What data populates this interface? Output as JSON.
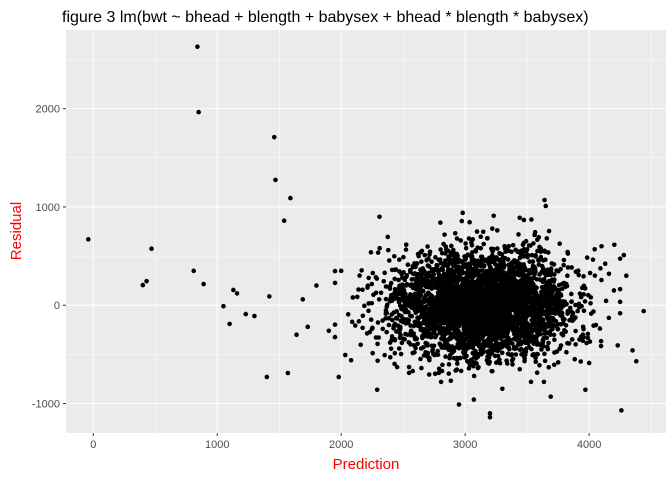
{
  "chart_data": {
    "type": "scatter",
    "title": "figure 3 lm(bwt ~ bhead + blength + babysex + bhead * blength * babysex)",
    "xlabel": "Prediction",
    "ylabel": "Residual",
    "xlim": [
      -220,
      4620
    ],
    "ylim": [
      -1300,
      2800
    ],
    "x_ticks": [
      0,
      1000,
      2000,
      3000,
      4000
    ],
    "y_ticks": [
      -1000,
      0,
      1000,
      2000
    ],
    "x_tick_labels": [
      "0",
      "1000",
      "2000",
      "3000",
      "4000"
    ],
    "y_tick_labels": [
      "-1000",
      "0",
      "1000",
      "2000"
    ],
    "grid": true,
    "panel_background": "#ebebeb",
    "grid_color": "#ffffff",
    "point_color": "#000000",
    "axis_label_color": "#ff0000",
    "outlier_points": [
      {
        "x": -40,
        "y": 670
      },
      {
        "x": 400,
        "y": 205
      },
      {
        "x": 430,
        "y": 245
      },
      {
        "x": 470,
        "y": 575
      },
      {
        "x": 810,
        "y": 350
      },
      {
        "x": 840,
        "y": 2630
      },
      {
        "x": 850,
        "y": 1965
      },
      {
        "x": 890,
        "y": 215
      },
      {
        "x": 1050,
        "y": -10
      },
      {
        "x": 1100,
        "y": -190
      },
      {
        "x": 1130,
        "y": 155
      },
      {
        "x": 1160,
        "y": 120
      },
      {
        "x": 1400,
        "y": -730
      },
      {
        "x": 1460,
        "y": 1710
      },
      {
        "x": 1470,
        "y": 1275
      },
      {
        "x": 1540,
        "y": 860
      },
      {
        "x": 1570,
        "y": -690
      },
      {
        "x": 1590,
        "y": 1090
      },
      {
        "x": 1980,
        "y": -730
      },
      {
        "x": 2290,
        "y": -860
      },
      {
        "x": 2950,
        "y": -1010
      },
      {
        "x": 3070,
        "y": -960
      },
      {
        "x": 3200,
        "y": -1100
      },
      {
        "x": 3200,
        "y": -1140
      },
      {
        "x": 3300,
        "y": -850
      },
      {
        "x": 3640,
        "y": 1070
      },
      {
        "x": 3650,
        "y": 1010
      },
      {
        "x": 3690,
        "y": -930
      },
      {
        "x": 3970,
        "y": -860
      },
      {
        "x": 4260,
        "y": -1070
      },
      {
        "x": 4280,
        "y": 510
      },
      {
        "x": 4300,
        "y": 300
      },
      {
        "x": 4350,
        "y": -460
      },
      {
        "x": 4380,
        "y": -570
      },
      {
        "x": 4440,
        "y": -60
      },
      {
        "x": 4100,
        "y": 600
      },
      {
        "x": 4160,
        "y": 320
      },
      {
        "x": 4200,
        "y": 150
      },
      {
        "x": 2310,
        "y": 580
      },
      {
        "x": 2380,
        "y": 560
      },
      {
        "x": 2800,
        "y": 840
      },
      {
        "x": 2980,
        "y": 940
      },
      {
        "x": 3230,
        "y": 910
      },
      {
        "x": 3440,
        "y": 890
      },
      {
        "x": 1800,
        "y": 200
      },
      {
        "x": 1730,
        "y": -220
      },
      {
        "x": 1690,
        "y": 60
      },
      {
        "x": 1900,
        "y": -260
      },
      {
        "x": 2000,
        "y": 350
      },
      {
        "x": 1300,
        "y": -110
      },
      {
        "x": 1230,
        "y": -90
      },
      {
        "x": 1420,
        "y": 90
      },
      {
        "x": 1640,
        "y": -300
      },
      {
        "x": 2080,
        "y": -560
      }
    ],
    "cluster": {
      "count": 3600,
      "seed": 17,
      "x_mean": 3130,
      "x_sd": 360,
      "x_min": 1950,
      "x_max": 4250,
      "y_mean": 0,
      "y_sd": 270,
      "y_min": -780,
      "y_max": 900
    }
  }
}
